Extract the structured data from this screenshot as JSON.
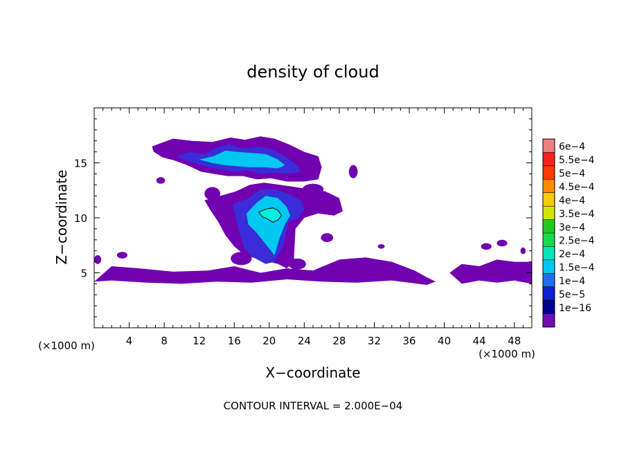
{
  "chart_data": {
    "type": "heatmap",
    "title": "density of cloud",
    "xlabel": "X−coordinate",
    "ylabel": "Z−coordinate",
    "x_unit_left": "(×1000 m)",
    "x_unit_right": "(×1000 m)",
    "xlim": [
      0,
      50
    ],
    "ylim": [
      0,
      20
    ],
    "x_ticks": [
      4,
      8,
      12,
      16,
      20,
      24,
      28,
      32,
      36,
      40,
      44,
      48
    ],
    "x_tick_labels": [
      "4",
      "8",
      "12",
      "16",
      "20",
      "24",
      "28",
      "32",
      "36",
      "40",
      "44",
      "48"
    ],
    "y_ticks": [
      5,
      10,
      15
    ],
    "y_tick_labels": [
      "5",
      "10",
      "15"
    ],
    "footnote": "CONTOUR INTERVAL = 2.000E−04",
    "colorbar": {
      "labels": [
        "6e−4",
        "5.5e−4",
        "5e−4",
        "4.5e−4",
        "4e−4",
        "3.5e−4",
        "3e−4",
        "2.5e−4",
        "2e−4",
        "1.5e−4",
        "1e−4",
        "5e−5",
        "1e−16"
      ],
      "colors": [
        "#f08080",
        "#ff2020",
        "#ff3a00",
        "#ff8c00",
        "#f2cc00",
        "#cfe800",
        "#22c822",
        "#19d94f",
        "#00e6b8",
        "#00c8f0",
        "#1e6ef0",
        "#0a1ed2",
        "#000090",
        "#7010b0"
      ]
    },
    "field_colors": {
      "edge": "#7000b0",
      "low": "#3a2cd8",
      "mid": "#1060f0",
      "high": "#00c8f0",
      "peak": "#00f0e0"
    },
    "regions": [
      {
        "name": "upper-anvil",
        "level": "edge",
        "x": [
          6.6,
          9.0,
          11.2,
          13.5,
          15.6,
          17.2,
          19.0,
          20.6,
          22.2,
          24.0,
          25.6,
          26.0,
          25.6,
          24.0,
          22.0,
          20.2,
          18.6,
          17.0,
          15.2,
          13.6,
          12.2,
          10.6,
          9.2,
          7.8,
          6.8,
          6.6
        ],
        "y": [
          16.5,
          17.2,
          17.0,
          16.9,
          17.3,
          17.1,
          17.4,
          17.2,
          16.7,
          16.0,
          15.6,
          14.6,
          13.5,
          13.3,
          13.3,
          13.6,
          13.5,
          13.8,
          13.8,
          14.0,
          14.2,
          14.8,
          15.2,
          15.5,
          16.0,
          16.5
        ]
      },
      {
        "name": "upper-anvil-core",
        "level": "low",
        "x": [
          9.4,
          11.0,
          12.6,
          14.0,
          15.4,
          17.0,
          18.8,
          20.4,
          21.8,
          23.2,
          23.6,
          22.4,
          20.6,
          19.0,
          17.6,
          16.0,
          14.4,
          13.0,
          11.8,
          10.6,
          9.4
        ],
        "y": [
          15.6,
          16.0,
          15.8,
          16.4,
          16.7,
          16.3,
          16.5,
          16.2,
          15.6,
          14.8,
          14.2,
          14.0,
          14.1,
          14.0,
          14.3,
          14.2,
          14.4,
          14.6,
          14.9,
          15.2,
          15.6
        ]
      },
      {
        "name": "upper-anvil-cyan",
        "level": "high",
        "x": [
          12.0,
          13.6,
          15.0,
          16.4,
          18.0,
          19.6,
          21.0,
          21.8,
          21.0,
          19.4,
          17.8,
          16.2,
          14.8,
          13.4,
          12.0
        ],
        "y": [
          15.3,
          15.6,
          16.1,
          16.0,
          15.9,
          15.8,
          15.3,
          14.8,
          14.5,
          14.6,
          14.6,
          14.7,
          14.8,
          15.0,
          15.3
        ]
      },
      {
        "name": "lower-cloud",
        "level": "edge",
        "x": [
          12.6,
          14.4,
          16.2,
          17.8,
          19.4,
          21.2,
          23.0,
          24.6,
          26.4,
          28.0,
          28.4,
          27.4,
          25.6,
          24.0,
          23.0,
          22.8,
          22.0,
          21.0,
          19.0,
          17.2,
          16.0,
          15.0,
          14.2,
          13.2,
          12.6
        ],
        "y": [
          11.6,
          12.0,
          12.4,
          13.0,
          13.2,
          13.0,
          12.8,
          12.6,
          12.4,
          11.8,
          10.6,
          10.2,
          10.4,
          10.0,
          9.0,
          6.0,
          5.4,
          5.8,
          6.2,
          6.6,
          7.4,
          8.4,
          9.6,
          10.8,
          11.6
        ]
      },
      {
        "name": "lower-cloud-core",
        "level": "low",
        "x": [
          15.8,
          17.6,
          19.0,
          20.6,
          22.2,
          23.6,
          24.0,
          23.4,
          22.2,
          21.6,
          20.6,
          19.6,
          18.2,
          17.2,
          16.6,
          15.8
        ],
        "y": [
          11.2,
          11.8,
          12.6,
          12.6,
          12.2,
          11.6,
          10.8,
          10.0,
          9.6,
          7.4,
          6.0,
          5.8,
          6.4,
          7.2,
          8.6,
          11.2
        ]
      },
      {
        "name": "lower-cloud-cyan",
        "level": "high",
        "x": [
          17.4,
          18.6,
          19.6,
          21.0,
          22.0,
          22.4,
          21.8,
          21.2,
          20.6,
          19.6,
          18.6,
          17.6,
          17.4
        ],
        "y": [
          10.4,
          11.4,
          12.0,
          11.8,
          11.0,
          10.2,
          9.4,
          8.2,
          6.6,
          7.6,
          8.6,
          9.4,
          10.4
        ]
      },
      {
        "name": "lower-band",
        "level": "edge",
        "x": [
          0.0,
          2.0,
          5.2,
          9.0,
          13.0,
          16.0,
          19.0,
          22.0,
          25.0,
          28.0,
          31.0,
          34.0,
          36.6,
          38.0,
          39.0,
          38.0,
          34.0,
          30.0,
          26.0,
          22.0,
          18.0,
          14.0,
          10.0,
          6.0,
          2.0,
          0.0
        ],
        "y": [
          4.2,
          5.6,
          5.4,
          5.1,
          5.2,
          5.6,
          5.0,
          5.4,
          5.2,
          6.2,
          6.4,
          6.0,
          5.2,
          4.6,
          4.2,
          3.9,
          4.3,
          4.1,
          4.2,
          4.4,
          4.1,
          4.2,
          4.0,
          4.1,
          4.3,
          4.2
        ]
      },
      {
        "name": "right-band",
        "level": "edge",
        "x": [
          40.6,
          42.0,
          44.0,
          46.0,
          48.0,
          50.0,
          50.0,
          48.0,
          46.0,
          44.0,
          42.0,
          40.6
        ],
        "y": [
          5.0,
          5.8,
          5.6,
          6.2,
          6.0,
          6.0,
          4.0,
          4.3,
          4.1,
          4.3,
          4.0,
          5.0
        ]
      }
    ],
    "blobs": [
      {
        "x": 13.5,
        "y": 12.2,
        "rx": 0.9,
        "ry": 0.6
      },
      {
        "x": 25.0,
        "y": 12.6,
        "rx": 1.2,
        "ry": 0.5
      },
      {
        "x": 29.6,
        "y": 14.2,
        "rx": 0.5,
        "ry": 0.6
      },
      {
        "x": 7.6,
        "y": 13.4,
        "rx": 0.5,
        "ry": 0.3
      },
      {
        "x": 26.6,
        "y": 8.2,
        "rx": 0.7,
        "ry": 0.4
      },
      {
        "x": 16.8,
        "y": 6.3,
        "rx": 1.2,
        "ry": 0.6
      },
      {
        "x": 3.2,
        "y": 6.6,
        "rx": 0.6,
        "ry": 0.3
      },
      {
        "x": 0.4,
        "y": 6.2,
        "rx": 0.4,
        "ry": 0.4
      },
      {
        "x": 23.2,
        "y": 5.8,
        "rx": 1.0,
        "ry": 0.5
      },
      {
        "x": 32.8,
        "y": 7.4,
        "rx": 0.4,
        "ry": 0.2
      },
      {
        "x": 44.8,
        "y": 7.4,
        "rx": 0.6,
        "ry": 0.3
      },
      {
        "x": 46.6,
        "y": 7.7,
        "rx": 0.6,
        "ry": 0.3
      },
      {
        "x": 49.0,
        "y": 7.0,
        "rx": 0.3,
        "ry": 0.3
      }
    ],
    "contour": {
      "x": [
        18.8,
        19.6,
        20.4,
        21.0,
        21.4,
        21.0,
        20.4,
        19.8,
        19.2,
        18.8
      ],
      "y": [
        10.5,
        10.8,
        10.9,
        10.7,
        10.2,
        9.8,
        9.6,
        9.9,
        10.1,
        10.5
      ]
    }
  }
}
